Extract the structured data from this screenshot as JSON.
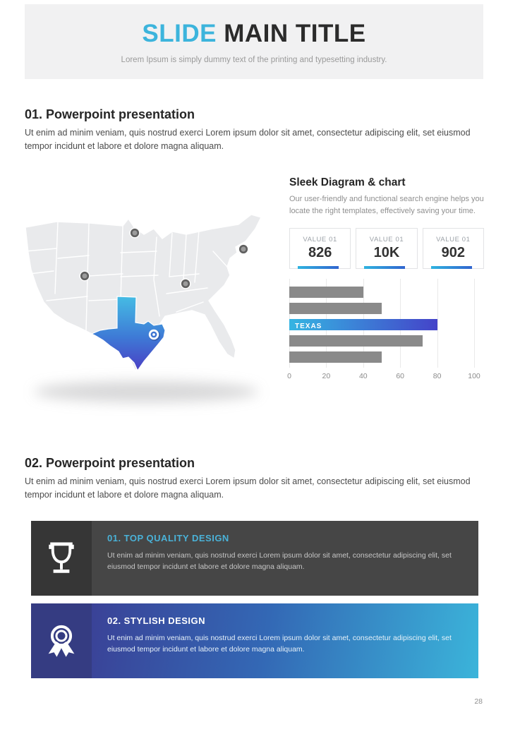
{
  "header": {
    "title_accent": "SLIDE",
    "title_rest": " MAIN TITLE",
    "subtitle": "Lorem Ipsum is simply dummy text of the printing and typesetting industry."
  },
  "section1": {
    "heading": "01. Powerpoint presentation",
    "body": "Ut enim ad minim veniam, quis nostrud exerci  Lorem ipsum dolor sit amet, consectetur adipiscing elit, set eiusmod tempor incidunt et labore et dolore magna aliquam."
  },
  "section2": {
    "heading": "02. Powerpoint presentation",
    "body": "Ut enim ad minim veniam, quis nostrud exerci  Lorem ipsum dolor sit amet, consectetur adipiscing elit, set eiusmod tempor incidunt et labore et dolore magna aliquam."
  },
  "map": {
    "highlight_state": "Texas",
    "pin_count": 5,
    "highlight_gradient": [
      "#45bce4",
      "#4a3fc4"
    ]
  },
  "sleek": {
    "heading": "Sleek Diagram & chart",
    "body": "Our user-friendly and functional search engine helps you locate the right templates, effectively saving your time."
  },
  "value_boxes": [
    {
      "label": "VALUE 01",
      "value": "826"
    },
    {
      "label": "VALUE 01",
      "value": "10K"
    },
    {
      "label": "VALUE 01",
      "value": "902"
    }
  ],
  "chart_data": {
    "type": "bar",
    "orientation": "horizontal",
    "categories": [
      "",
      "",
      "TEXAS",
      "",
      ""
    ],
    "values": [
      40,
      50,
      80,
      72,
      50
    ],
    "highlight_index": 2,
    "highlight_label": "TEXAS",
    "xticks": [
      0,
      20,
      40,
      60,
      80,
      100
    ],
    "xlim": [
      0,
      100
    ],
    "bar_color": "#8a8a8a",
    "highlight_gradient": [
      "#35b5e2",
      "#4443c9"
    ],
    "grid": true,
    "title": "",
    "xlabel": "",
    "ylabel": ""
  },
  "cards": [
    {
      "icon": "trophy-icon",
      "heading": "01. TOP QUALITY DESIGN",
      "body": "Ut enim ad minim veniam, quis nostrud exerci  Lorem ipsum dolor sit amet, consectetur adipiscing elit, set eiusmod tempor incidunt et labore et dolore magna aliquam."
    },
    {
      "icon": "medal-icon",
      "heading": "02. STYLISH DESIGN",
      "body": "Ut enim ad minim veniam, quis nostrud exerci  Lorem ipsum dolor sit amet, consectetur adipiscing elit, set eiusmod tempor incidunt et labore et dolore magna aliquam."
    }
  ],
  "colors": {
    "accent_blue": "#3cb4dc",
    "heading_dark": "#2b2b2b",
    "card1_bg": "#464646",
    "card2_gradient": [
      "#3a4297",
      "#3bb4da"
    ],
    "header_bg": "#f1f1f2"
  },
  "page": {
    "number": "28"
  }
}
